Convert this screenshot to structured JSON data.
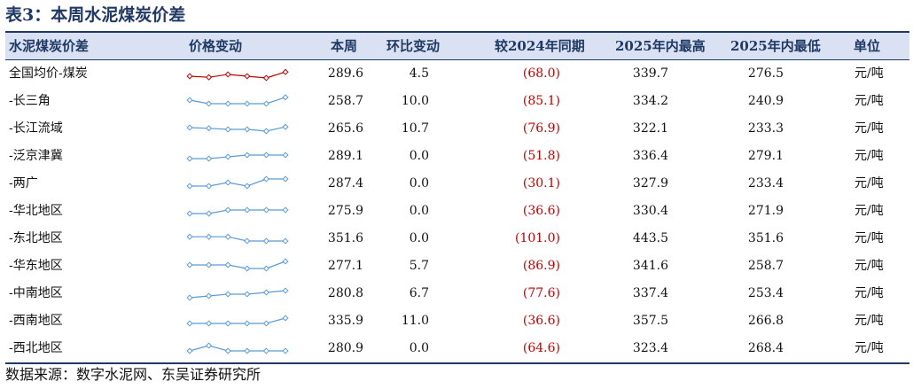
{
  "title": "表3：本周水泥煤炭价差",
  "headers": [
    "水泥煤炭价差",
    "价格变动",
    "本周",
    "环比变动",
    "较2024年同期",
    "2025年内最高",
    "2025年内最低",
    "单位"
  ],
  "rows": [
    {
      "name": "全国均价-煤炭",
      "week": "289.6",
      "wow": "4.5",
      "yoy": "(68.0)",
      "high": "339.7",
      "low": "276.5",
      "unit": "元/吨",
      "spark": [
        3,
        3.3,
        2.5,
        3,
        3.5,
        1.8
      ],
      "color": "#c00000"
    },
    {
      "name": "-长三角",
      "week": "258.7",
      "wow": "10.0",
      "yoy": "(85.1)",
      "high": "334.2",
      "low": "240.9",
      "unit": "元/吨",
      "spark": [
        2,
        3,
        3,
        3,
        3,
        1.2
      ],
      "color": "#5b9bd5"
    },
    {
      "name": "-长江流域",
      "week": "265.6",
      "wow": "10.7",
      "yoy": "(76.9)",
      "high": "322.1",
      "low": "233.3",
      "unit": "元/吨",
      "spark": [
        2,
        2.2,
        2.5,
        2.5,
        3,
        1.8
      ],
      "color": "#5b9bd5"
    },
    {
      "name": "-泛京津冀",
      "week": "289.1",
      "wow": "0.0",
      "yoy": "(51.8)",
      "high": "336.4",
      "low": "279.1",
      "unit": "元/吨",
      "spark": [
        3,
        3,
        2.5,
        2,
        2,
        2
      ],
      "color": "#5b9bd5"
    },
    {
      "name": "-两广",
      "week": "287.4",
      "wow": "0.0",
      "yoy": "(30.1)",
      "high": "327.9",
      "low": "233.4",
      "unit": "元/吨",
      "spark": [
        3,
        3,
        2,
        3,
        1,
        1
      ],
      "color": "#5b9bd5"
    },
    {
      "name": "-华北地区",
      "week": "275.9",
      "wow": "0.0",
      "yoy": "(36.6)",
      "high": "330.4",
      "low": "271.9",
      "unit": "元/吨",
      "spark": [
        3,
        3,
        2,
        2,
        2,
        2
      ],
      "color": "#5b9bd5"
    },
    {
      "name": "-东北地区",
      "week": "351.6",
      "wow": "0.0",
      "yoy": "(101.0)",
      "high": "443.5",
      "low": "351.6",
      "unit": "元/吨",
      "spark": [
        1.8,
        1.8,
        1.8,
        3,
        3,
        3
      ],
      "color": "#5b9bd5"
    },
    {
      "name": "-华东地区",
      "week": "277.1",
      "wow": "5.7",
      "yoy": "(86.9)",
      "high": "341.6",
      "low": "258.7",
      "unit": "元/吨",
      "spark": [
        2,
        2,
        2,
        3,
        3,
        1
      ],
      "color": "#5b9bd5"
    },
    {
      "name": "-中南地区",
      "week": "280.8",
      "wow": "6.7",
      "yoy": "(77.6)",
      "high": "337.4",
      "low": "253.4",
      "unit": "元/吨",
      "spark": [
        3.5,
        3,
        2.5,
        2.5,
        2,
        1.5
      ],
      "color": "#5b9bd5"
    },
    {
      "name": "-西南地区",
      "week": "335.9",
      "wow": "11.0",
      "yoy": "(36.6)",
      "high": "357.5",
      "low": "266.8",
      "unit": "元/吨",
      "spark": [
        3,
        3,
        3,
        3,
        3,
        1.5
      ],
      "color": "#5b9bd5"
    },
    {
      "name": "-西北地区",
      "week": "280.9",
      "wow": "0.0",
      "yoy": "(64.6)",
      "high": "323.4",
      "low": "268.4",
      "unit": "元/吨",
      "spark": [
        3,
        1.5,
        3,
        3,
        3,
        3
      ],
      "color": "#5b9bd5"
    }
  ],
  "footer": "数据来源：数字水泥网、东吴证券研究所"
}
